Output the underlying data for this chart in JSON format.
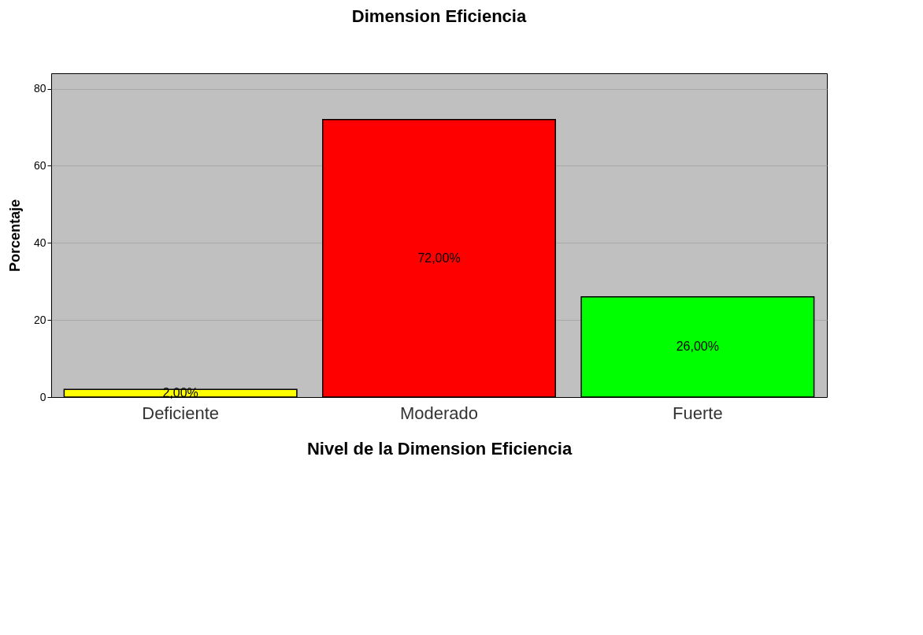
{
  "chart_data": {
    "type": "bar",
    "title": "Dimension Eficiencia",
    "xlabel": "Nivel de la Dimension Eficiencia",
    "ylabel": "Porcentaje",
    "categories": [
      "Deficiente",
      "Moderado",
      "Fuerte"
    ],
    "values": [
      2,
      72,
      26
    ],
    "colors": [
      "#ffff00",
      "#ff0000",
      "#00ff00"
    ],
    "value_labels": [
      "2,00%",
      "72,00%",
      "26,00%"
    ],
    "ylim": [
      0,
      84
    ],
    "yticks": [
      0,
      20,
      40,
      60,
      80
    ],
    "grid": "y"
  }
}
